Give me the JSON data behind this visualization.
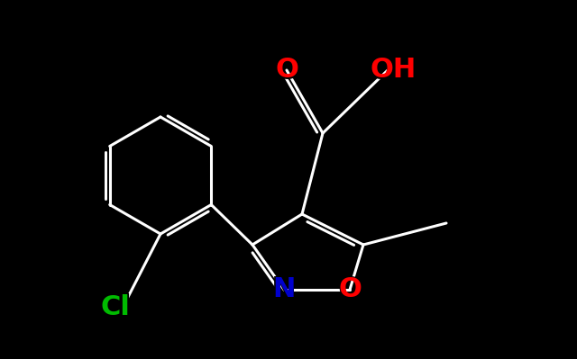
{
  "background_color": "#000000",
  "bond_color": "#ffffff",
  "bond_width": 2.2,
  "atom_colors": {
    "O": "#ff0000",
    "N": "#0000cc",
    "Cl": "#00bb00",
    "C": "#ffffff",
    "H": "#ffffff"
  },
  "font_size_atom": 20,
  "fig_width": 6.4,
  "fig_height": 3.99,
  "dpi": 100
}
